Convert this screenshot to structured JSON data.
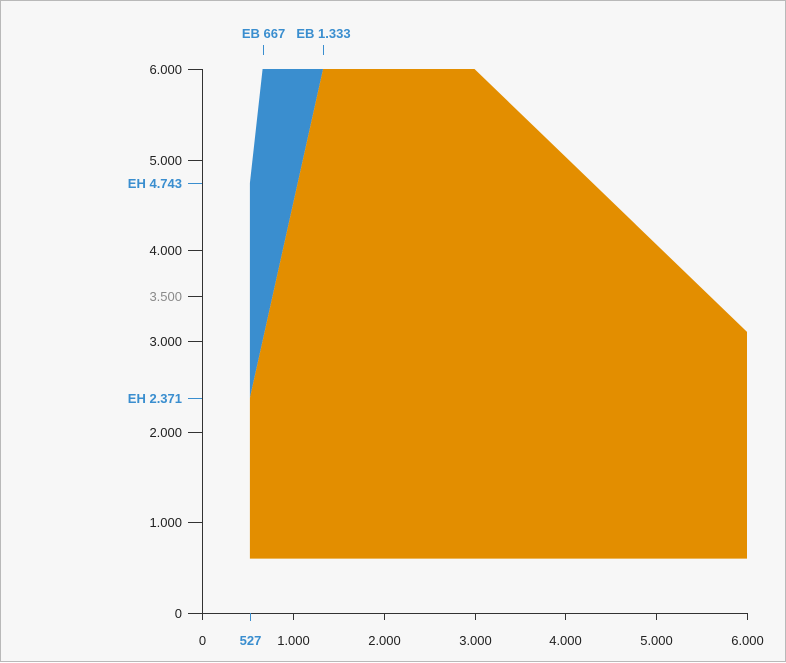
{
  "chart_data": {
    "type": "area",
    "title": "",
    "xlabel": "",
    "ylabel": "",
    "xlim": [
      0,
      6000
    ],
    "ylim": [
      0,
      6000
    ],
    "grid": false,
    "colors": {
      "blue": "#3a8ecf",
      "orange": "#e38e00",
      "annotation": "#3a8ecf",
      "axis": "#333333"
    },
    "x_ticks": [
      {
        "value": 0,
        "label": "0"
      },
      {
        "value": 1000,
        "label": "1.000"
      },
      {
        "value": 2000,
        "label": "2.000"
      },
      {
        "value": 3000,
        "label": "3.000"
      },
      {
        "value": 4000,
        "label": "4.000"
      },
      {
        "value": 5000,
        "label": "5.000"
      },
      {
        "value": 6000,
        "label": "6.000"
      }
    ],
    "y_ticks": [
      {
        "value": 0,
        "label": "0",
        "minor": false
      },
      {
        "value": 1000,
        "label": "1.000",
        "minor": false
      },
      {
        "value": 2000,
        "label": "2.000",
        "minor": false
      },
      {
        "value": 3000,
        "label": "3.000",
        "minor": false
      },
      {
        "value": 3500,
        "label": "3.500",
        "minor": true
      },
      {
        "value": 4000,
        "label": "4.000",
        "minor": false
      },
      {
        "value": 5000,
        "label": "5.000",
        "minor": false
      },
      {
        "value": 6000,
        "label": "6.000",
        "minor": false
      }
    ],
    "series": [
      {
        "color": "#3a8ecf",
        "points": [
          [
            527,
            2371
          ],
          [
            527,
            4743
          ],
          [
            667,
            6000
          ],
          [
            1333,
            6000
          ]
        ]
      },
      {
        "color": "#e38e00",
        "points": [
          [
            527,
            600
          ],
          [
            527,
            2371
          ],
          [
            1333,
            6000
          ],
          [
            3000,
            6000
          ],
          [
            6000,
            3100
          ],
          [
            6000,
            600
          ]
        ]
      }
    ],
    "annotations": {
      "top": [
        {
          "value": 667,
          "label": "EB 667"
        },
        {
          "value": 1333,
          "label": "EB 1.333"
        }
      ],
      "left": [
        {
          "value": 4743,
          "label": "EH 4.743"
        },
        {
          "value": 2371,
          "label": "EH 2.371"
        }
      ],
      "bottom": [
        {
          "value": 527,
          "label": "527"
        }
      ]
    }
  }
}
